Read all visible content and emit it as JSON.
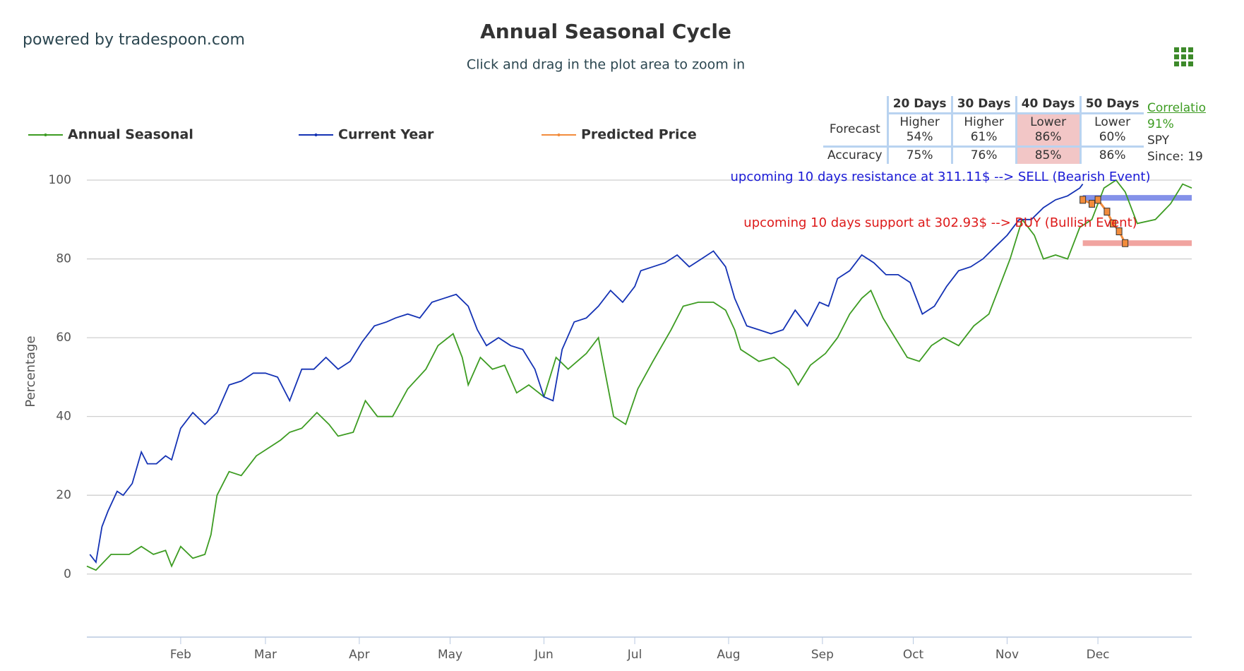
{
  "header": {
    "powered": "powered by tradespoon.com"
  },
  "chart_data": {
    "type": "line",
    "title": "Annual Seasonal Cycle",
    "subtitle": "Click and drag in the plot area to zoom in",
    "y_label": "Percentage",
    "xlim": [
      0,
      365
    ],
    "xticks": [
      {
        "value": 31,
        "label": "Feb"
      },
      {
        "value": 59,
        "label": "Mar"
      },
      {
        "value": 90,
        "label": "Apr"
      },
      {
        "value": 120,
        "label": "May"
      },
      {
        "value": 151,
        "label": "Jun"
      },
      {
        "value": 181,
        "label": "Jul"
      },
      {
        "value": 212,
        "label": "Aug"
      },
      {
        "value": 243,
        "label": "Sep"
      },
      {
        "value": 273,
        "label": "Oct"
      },
      {
        "value": 304,
        "label": "Nov"
      },
      {
        "value": 334,
        "label": "Dec"
      }
    ],
    "ylim": [
      -16,
      100
    ],
    "yticks": [
      0,
      20,
      40,
      60,
      80,
      100
    ],
    "grid": true,
    "series": [
      {
        "name": "Annual Seasonal",
        "color": "#3d9c22",
        "x": [
          0,
          3,
          8,
          14,
          18,
          22,
          26,
          28,
          31,
          35,
          39,
          41,
          43,
          47,
          51,
          56,
          60,
          64,
          67,
          71,
          76,
          80,
          83,
          88,
          92,
          96,
          101,
          106,
          112,
          116,
          121,
          124,
          126,
          130,
          134,
          138,
          142,
          146,
          151,
          155,
          159,
          165,
          169,
          171,
          174,
          178,
          182,
          187,
          193,
          197,
          202,
          207,
          211,
          214,
          216,
          222,
          227,
          232,
          235,
          239,
          244,
          248,
          252,
          256,
          259,
          263,
          267,
          271,
          275,
          279,
          283,
          288,
          293,
          298,
          301,
          305,
          309,
          313,
          316,
          320,
          324,
          328,
          332,
          336,
          340,
          343,
          347,
          353,
          358,
          362,
          365
        ],
        "values": [
          2,
          1,
          5,
          5,
          7,
          5,
          6,
          2,
          7,
          4,
          5,
          10,
          20,
          26,
          25,
          30,
          32,
          34,
          36,
          37,
          41,
          38,
          35,
          36,
          44,
          40,
          40,
          47,
          52,
          58,
          61,
          55,
          48,
          55,
          52,
          53,
          46,
          48,
          45,
          55,
          52,
          56,
          60,
          52,
          40,
          38,
          47,
          54,
          62,
          68,
          69,
          69,
          67,
          62,
          57,
          54,
          55,
          52,
          48,
          53,
          56,
          60,
          66,
          70,
          72,
          65,
          60,
          55,
          54,
          58,
          60,
          58,
          63,
          66,
          72,
          80,
          90,
          86,
          80,
          81,
          80,
          88,
          90,
          98,
          100,
          97,
          89,
          90,
          94,
          99,
          98
        ]
      },
      {
        "name": "Current Year",
        "color": "#1432b4",
        "x": [
          1,
          3,
          5,
          7,
          10,
          12,
          15,
          18,
          20,
          23,
          26,
          28,
          31,
          35,
          39,
          43,
          47,
          51,
          55,
          59,
          63,
          67,
          71,
          75,
          79,
          83,
          87,
          91,
          95,
          99,
          102,
          106,
          110,
          114,
          118,
          122,
          126,
          129,
          132,
          136,
          140,
          144,
          148,
          151,
          154,
          157,
          161,
          165,
          169,
          173,
          177,
          181,
          183,
          187,
          191,
          195,
          199,
          203,
          207,
          211,
          214,
          218,
          222,
          226,
          230,
          234,
          238,
          242,
          245,
          248,
          252,
          256,
          260,
          264,
          268,
          272,
          276,
          280,
          284,
          288,
          292,
          296,
          300,
          304,
          308,
          312,
          316,
          320,
          324,
          328,
          329
        ],
        "values": [
          5,
          3,
          12,
          16,
          21,
          20,
          23,
          31,
          28,
          28,
          30,
          29,
          37,
          41,
          38,
          41,
          48,
          49,
          51,
          51,
          50,
          44,
          52,
          52,
          55,
          52,
          54,
          59,
          63,
          64,
          65,
          66,
          65,
          69,
          70,
          71,
          68,
          62,
          58,
          60,
          58,
          57,
          52,
          45,
          44,
          57,
          64,
          65,
          68,
          72,
          69,
          73,
          77,
          78,
          79,
          81,
          78,
          80,
          82,
          78,
          70,
          63,
          62,
          61,
          62,
          67,
          63,
          69,
          68,
          75,
          77,
          81,
          79,
          76,
          76,
          74,
          66,
          68,
          73,
          77,
          78,
          80,
          83,
          86,
          90,
          90,
          93,
          95,
          96,
          98,
          99
        ]
      },
      {
        "name": "Predicted Price",
        "color": "#f28c3c",
        "x": [
          329,
          332,
          334,
          337,
          339,
          341,
          343
        ],
        "values": [
          95,
          94,
          95,
          92,
          89,
          87,
          84
        ]
      }
    ],
    "bands": [
      {
        "value": 95.5,
        "from": 329,
        "to": 365,
        "color": "#6f7fe6",
        "label": "upcoming 10 days resistance at 311.11$ --> SELL (Bearish Event)",
        "label_color": "#1a1ad6"
      },
      {
        "value": 84,
        "from": 329,
        "to": 365,
        "color": "#ef9590",
        "label": "upcoming 10 days support at 302.93$ --> BUY (Bullish Event)",
        "label_color": "#dd1a1a"
      }
    ]
  },
  "table": {
    "columns": [
      "20 Days",
      "30 Days",
      "40 Days",
      "50 Days"
    ],
    "forecast_label": "Forecast",
    "forecast": [
      [
        "Higher",
        "54%"
      ],
      [
        "Higher",
        "61%"
      ],
      [
        "Lower",
        "86%"
      ],
      [
        "Lower",
        "60%"
      ]
    ],
    "accuracy_label": "Accuracy",
    "accuracy": [
      "75%",
      "76%",
      "85%",
      "86%"
    ],
    "highlight_column": 2
  },
  "correlation": {
    "link": "Correlatio",
    "value": "91%",
    "symbol": "SPY",
    "since": "Since: 19"
  }
}
